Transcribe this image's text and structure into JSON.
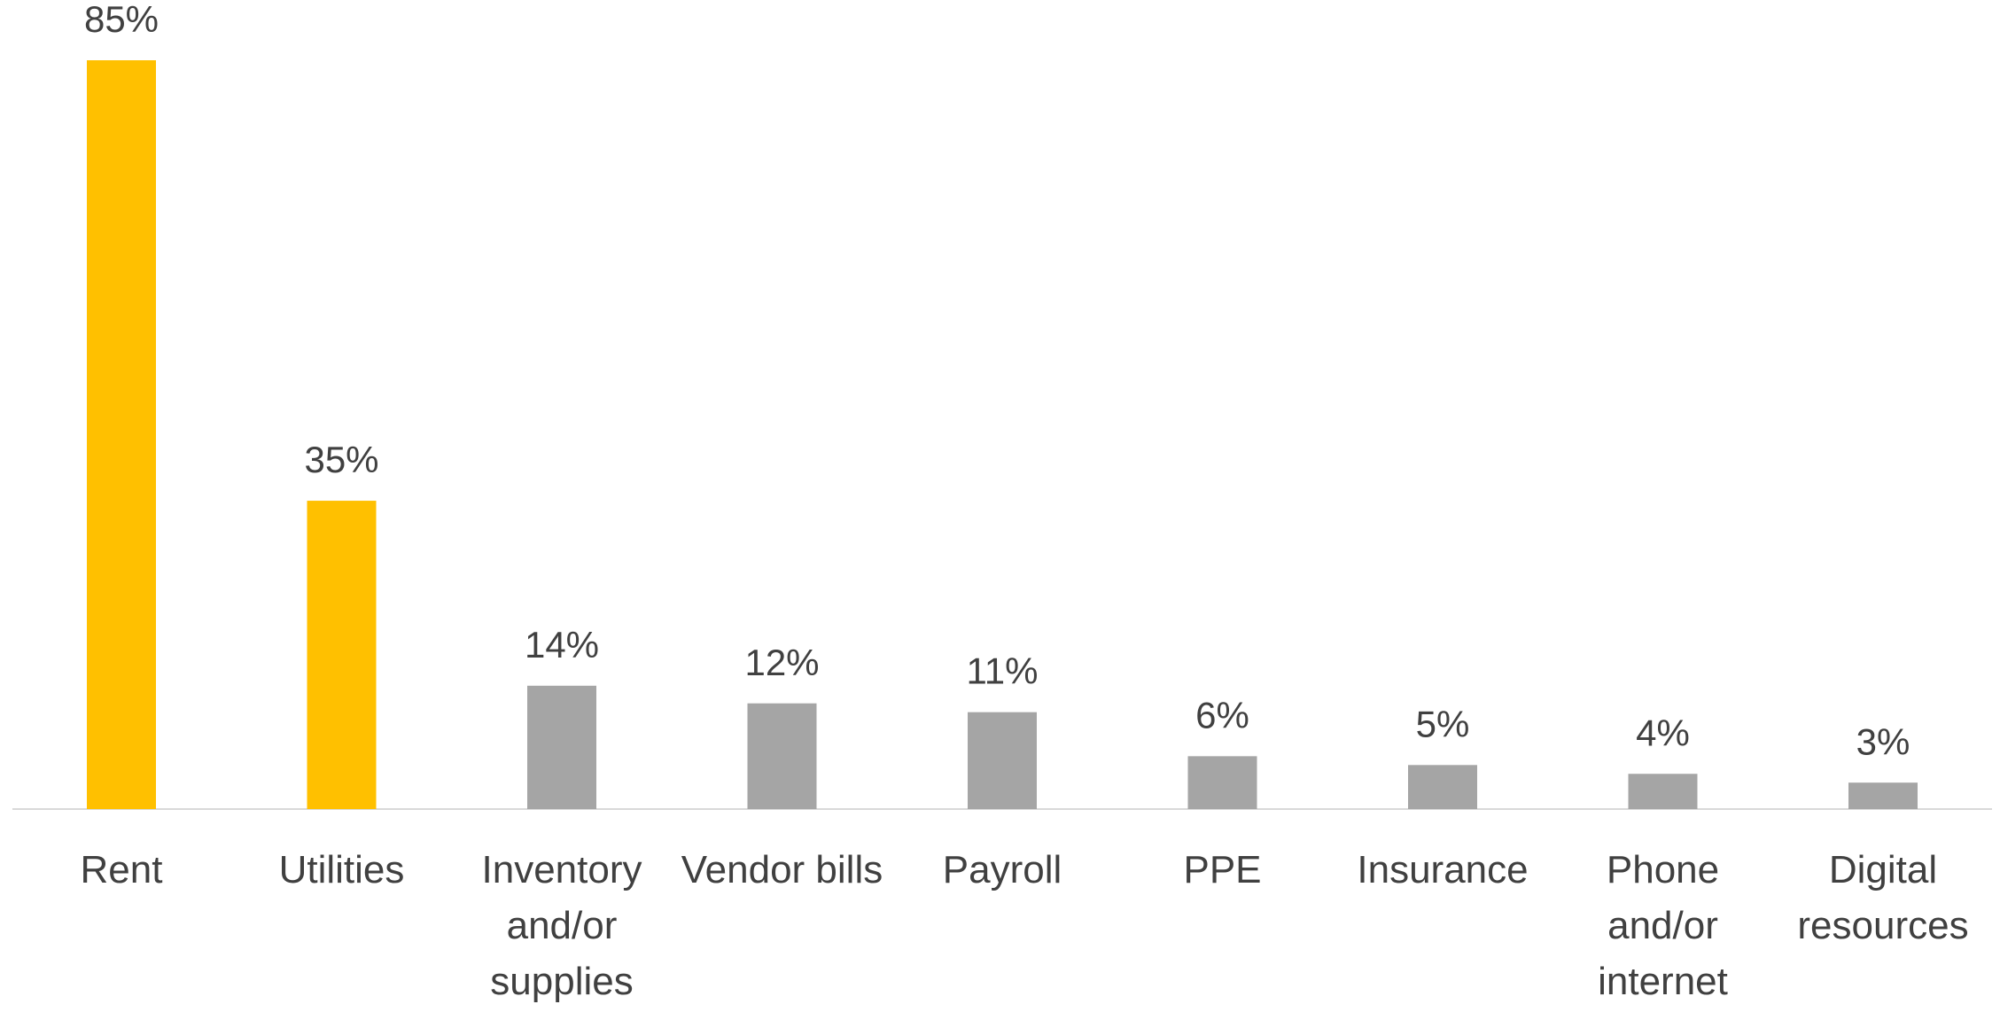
{
  "chart_data": {
    "type": "bar",
    "categories": [
      "Rent",
      "Utilities",
      "Inventory and/or supplies",
      "Vendor bills",
      "Payroll",
      "PPE",
      "Insurance",
      "Phone and/or internet",
      "Digital resources"
    ],
    "values": [
      85,
      35,
      14,
      12,
      11,
      6,
      5,
      4,
      3
    ],
    "value_labels": [
      "85%",
      "35%",
      "14%",
      "12%",
      "11%",
      "6%",
      "5%",
      "4%",
      "3%"
    ],
    "colors": [
      "#ffc000",
      "#ffc000",
      "#a5a5a5",
      "#a5a5a5",
      "#a5a5a5",
      "#a5a5a5",
      "#a5a5a5",
      "#a5a5a5",
      "#a5a5a5"
    ],
    "ylim": [
      0,
      85
    ]
  }
}
